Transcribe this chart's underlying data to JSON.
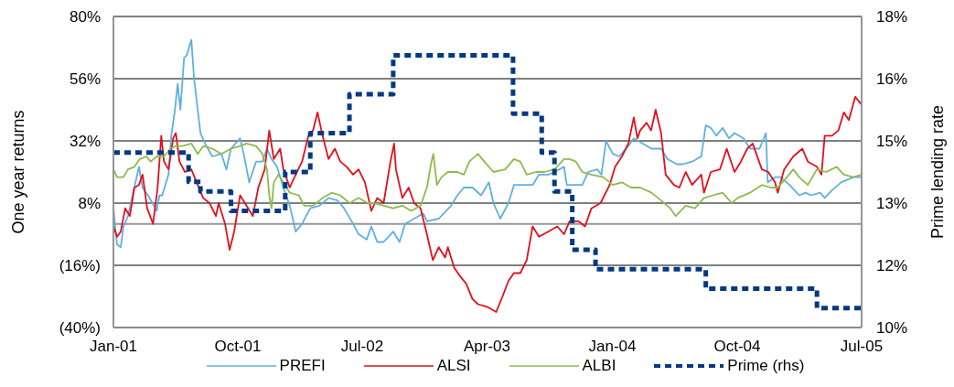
{
  "chart_data": {
    "type": "line",
    "ylabel": "One year returns",
    "y2label": "Prime lending rate",
    "xlim": [
      "2001-01-01",
      "2005-07-01"
    ],
    "xticks": [
      {
        "value": "2001-01",
        "label": "Jan-01"
      },
      {
        "value": "2001-10",
        "label": "Oct-01"
      },
      {
        "value": "2002-07",
        "label": "Jul-02"
      },
      {
        "value": "2003-04",
        "label": "Apr-03"
      },
      {
        "value": "2004-01",
        "label": "Jan-04"
      },
      {
        "value": "2004-10",
        "label": "Oct-04"
      },
      {
        "value": "2005-07",
        "label": "Jul-05"
      }
    ],
    "ylim": [
      -40,
      80
    ],
    "yticks": [
      {
        "value": -40,
        "label": "(40%)"
      },
      {
        "value": -16,
        "label": "(16%)"
      },
      {
        "value": 8,
        "label": "8%"
      },
      {
        "value": 32,
        "label": "32%"
      },
      {
        "value": 56,
        "label": "56%"
      },
      {
        "value": 80,
        "label": "80%"
      }
    ],
    "y2lim": [
      10,
      18
    ],
    "y2ticks": [
      {
        "value": 10,
        "label": "10%"
      },
      {
        "value": 11.6,
        "label": "12%"
      },
      {
        "value": 13.2,
        "label": "13%"
      },
      {
        "value": 14.8,
        "label": "15%"
      },
      {
        "value": 16.4,
        "label": "16%"
      },
      {
        "value": 18,
        "label": "18%"
      }
    ],
    "grid": "y",
    "legend": "bottom",
    "marker": "none",
    "ref_lines": [
      {
        "axis": "y",
        "value": 0,
        "color": "#969696"
      }
    ],
    "series": [
      {
        "name": "PREFI",
        "type": "line",
        "color": "#5fb0e0",
        "x": [
          "2001-01-01",
          "2001-01-09",
          "2001-01-17",
          "2001-01-23",
          "2001-02-02",
          "2001-02-12",
          "2001-02-26",
          "2001-03-06",
          "2001-03-18",
          "2001-04-06",
          "2001-04-12",
          "2001-04-18",
          "2001-05-02",
          "2001-05-08",
          "2001-05-16",
          "2001-05-22",
          "2001-05-28",
          "2001-06-05",
          "2001-06-11",
          "2001-06-21",
          "2001-06-27",
          "2001-07-05",
          "2001-07-11",
          "2001-07-21",
          "2001-08-06",
          "2001-08-26",
          "2001-09-06",
          "2001-09-16",
          "2001-10-06",
          "2001-10-14",
          "2001-10-26",
          "2001-11-10",
          "2001-11-24",
          "2001-12-04",
          "2001-12-14",
          "2001-12-26",
          "2002-01-09",
          "2002-01-23",
          "2002-02-05",
          "2002-02-19",
          "2002-03-09",
          "2002-03-29",
          "2002-04-18",
          "2002-05-08",
          "2002-05-22",
          "2002-06-11",
          "2002-06-23",
          "2002-07-11",
          "2002-07-21",
          "2002-08-03",
          "2002-08-17",
          "2002-09-07",
          "2002-09-21",
          "2002-10-03",
          "2002-10-23",
          "2002-11-12",
          "2002-11-20",
          "2002-12-16",
          "2003-01-12",
          "2003-01-26",
          "2003-02-09",
          "2003-02-28",
          "2003-03-19",
          "2003-04-05",
          "2003-04-15",
          "2003-04-30",
          "2003-05-18",
          "2003-05-30",
          "2003-06-20",
          "2003-07-10",
          "2003-07-24",
          "2003-08-13",
          "2003-08-27",
          "2003-09-17",
          "2003-09-23",
          "2003-10-13",
          "2003-10-27",
          "2003-11-09",
          "2003-11-29",
          "2003-12-08",
          "2003-12-18",
          "2004-01-02",
          "2004-01-16",
          "2004-02-05",
          "2004-02-17",
          "2004-03-07",
          "2004-03-27",
          "2004-04-17",
          "2004-05-01",
          "2004-05-21",
          "2004-06-04",
          "2004-06-24",
          "2004-07-14",
          "2004-07-24",
          "2004-08-04",
          "2004-08-16",
          "2004-08-30",
          "2004-09-13",
          "2004-09-25",
          "2004-10-15",
          "2004-10-29",
          "2004-11-19",
          "2004-12-03",
          "2004-12-07",
          "2004-12-23",
          "2005-01-04",
          "2005-01-24",
          "2005-02-14",
          "2005-02-28",
          "2005-03-12",
          "2005-04-01",
          "2005-04-11",
          "2005-04-27",
          "2005-05-17",
          "2005-06-13",
          "2005-07-01"
        ],
        "values": [
          6,
          -8,
          -9,
          -1,
          3,
          11,
          22,
          14,
          11,
          5,
          11,
          11,
          19,
          34,
          44,
          54,
          44,
          64,
          65,
          71,
          56,
          44,
          35,
          31,
          26,
          27,
          21,
          29,
          33,
          27,
          16,
          24,
          24,
          29,
          25,
          22,
          14,
          7,
          -3,
          0,
          6,
          7,
          10,
          9,
          6,
          0,
          -4,
          -6,
          -1,
          -7,
          -7,
          -3,
          -7,
          0,
          2,
          4,
          1,
          2,
          7,
          11,
          14,
          14,
          11,
          16,
          8,
          2,
          8,
          15,
          15,
          15,
          19,
          19,
          20,
          22,
          15,
          15,
          15,
          20,
          21,
          19,
          32,
          27,
          26,
          30,
          33,
          31,
          29,
          29,
          25,
          23,
          23,
          24,
          26,
          38,
          37,
          34,
          37,
          33,
          35,
          33,
          29,
          29,
          35,
          16,
          18,
          18,
          15,
          11,
          12,
          11,
          12,
          10,
          13,
          16,
          18,
          18
        ]
      },
      {
        "name": "ALSI",
        "type": "line",
        "color": "#e2101c",
        "x": [
          "2001-01-01",
          "2001-01-09",
          "2001-01-17",
          "2001-01-27",
          "2001-02-06",
          "2001-02-16",
          "2001-02-26",
          "2001-03-06",
          "2001-03-16",
          "2001-03-29",
          "2001-04-08",
          "2001-04-16",
          "2001-04-22",
          "2001-05-02",
          "2001-05-12",
          "2001-05-18",
          "2001-05-26",
          "2001-06-07",
          "2001-06-21",
          "2001-07-05",
          "2001-07-17",
          "2001-07-31",
          "2001-08-14",
          "2001-08-20",
          "2001-09-03",
          "2001-09-13",
          "2001-09-23",
          "2001-10-06",
          "2001-10-20",
          "2001-11-03",
          "2001-11-15",
          "2001-11-29",
          "2001-12-09",
          "2001-12-19",
          "2002-01-02",
          "2002-01-09",
          "2002-01-23",
          "2002-02-05",
          "2002-02-19",
          "2002-03-05",
          "2002-03-15",
          "2002-03-25",
          "2002-04-05",
          "2002-04-18",
          "2002-05-02",
          "2002-05-14",
          "2002-05-28",
          "2002-06-11",
          "2002-06-23",
          "2002-07-07",
          "2002-07-21",
          "2002-08-03",
          "2002-08-17",
          "2002-09-01",
          "2002-09-09",
          "2002-09-13",
          "2002-09-27",
          "2002-10-11",
          "2002-10-23",
          "2002-11-06",
          "2002-11-20",
          "2002-12-03",
          "2002-12-16",
          "2002-12-30",
          "2003-01-05",
          "2003-01-19",
          "2003-01-31",
          "2003-02-14",
          "2003-02-28",
          "2003-03-12",
          "2003-04-01",
          "2003-04-21",
          "2003-05-05",
          "2003-05-18",
          "2003-05-30",
          "2003-06-13",
          "2003-06-27",
          "2003-07-10",
          "2003-07-24",
          "2003-08-13",
          "2003-09-02",
          "2003-09-17",
          "2003-09-29",
          "2003-10-19",
          "2003-11-02",
          "2003-11-16",
          "2003-12-06",
          "2003-12-26",
          "2004-01-07",
          "2004-01-22",
          "2004-02-05",
          "2004-02-17",
          "2004-02-25",
          "2004-03-02",
          "2004-03-16",
          "2004-03-26",
          "2004-04-05",
          "2004-04-17",
          "2004-04-27",
          "2004-05-15",
          "2004-05-27",
          "2004-06-10",
          "2004-06-24",
          "2004-07-14",
          "2004-07-20",
          "2004-08-04",
          "2004-08-24",
          "2004-09-08",
          "2004-09-25",
          "2004-10-09",
          "2004-10-23",
          "2004-11-04",
          "2004-11-24",
          "2004-12-08",
          "2004-12-23",
          "2004-12-29",
          "2005-01-12",
          "2005-02-01",
          "2005-02-21",
          "2005-03-05",
          "2005-03-25",
          "2005-04-04",
          "2005-04-11",
          "2005-04-27",
          "2005-05-11",
          "2005-05-23",
          "2005-06-03",
          "2005-06-17",
          "2005-07-01"
        ],
        "values": [
          -1,
          -5,
          -3,
          6,
          3,
          14,
          15,
          19,
          6,
          0,
          14,
          34,
          24,
          21,
          33,
          35,
          24,
          20,
          21,
          15,
          10,
          8,
          3,
          8,
          0,
          -10,
          -3,
          11,
          7,
          3,
          14,
          21,
          36,
          25,
          29,
          21,
          14,
          19,
          24,
          34,
          36,
          43,
          34,
          25,
          29,
          24,
          22,
          19,
          21,
          16,
          5,
          10,
          8,
          24,
          31,
          21,
          10,
          14,
          8,
          6,
          -4,
          -14,
          -9,
          -13,
          -9,
          -17,
          -20,
          -23,
          -29,
          -31,
          -32,
          -34,
          -28,
          -22,
          -19,
          -19,
          -14,
          -1,
          -5,
          -3,
          -1,
          -4,
          1,
          1,
          -1,
          6,
          8,
          15,
          22,
          26,
          31,
          41,
          33,
          36,
          39,
          36,
          44,
          35,
          19,
          15,
          14,
          20,
          15,
          19,
          12,
          20,
          21,
          29,
          20,
          24,
          29,
          31,
          21,
          20,
          16,
          12,
          21,
          26,
          29,
          24,
          22,
          19,
          34,
          34,
          36,
          43,
          40,
          49,
          46
        ]
      },
      {
        "name": "ALBI",
        "type": "line",
        "color": "#8dbb4c",
        "x": [
          "2001-01-01",
          "2001-01-09",
          "2001-01-23",
          "2001-02-02",
          "2001-02-16",
          "2001-02-28",
          "2001-03-14",
          "2001-03-24",
          "2001-04-06",
          "2001-04-22",
          "2001-05-06",
          "2001-05-18",
          "2001-06-01",
          "2001-06-21",
          "2001-07-05",
          "2001-07-17",
          "2001-08-06",
          "2001-08-26",
          "2001-09-16",
          "2001-10-06",
          "2001-10-20",
          "2001-11-10",
          "2001-11-24",
          "2001-12-04",
          "2001-12-09",
          "2001-12-14",
          "2001-12-19",
          "2001-12-29",
          "2002-01-09",
          "2002-01-23",
          "2002-02-12",
          "2002-02-24",
          "2002-03-15",
          "2002-04-05",
          "2002-04-25",
          "2002-05-14",
          "2002-06-03",
          "2002-06-23",
          "2002-07-13",
          "2002-07-27",
          "2002-08-17",
          "2002-09-07",
          "2002-09-27",
          "2002-10-17",
          "2002-11-06",
          "2002-11-20",
          "2002-11-30",
          "2002-12-04",
          "2002-12-12",
          "2002-12-22",
          "2003-01-05",
          "2003-01-26",
          "2003-02-09",
          "2003-02-21",
          "2003-03-12",
          "2003-03-26",
          "2003-04-15",
          "2003-05-11",
          "2003-05-30",
          "2003-06-13",
          "2003-06-27",
          "2003-07-17",
          "2003-08-05",
          "2003-08-27",
          "2003-09-17",
          "2003-09-29",
          "2003-10-13",
          "2003-10-27",
          "2003-11-16",
          "2003-12-12",
          "2004-01-02",
          "2004-01-22",
          "2004-02-11",
          "2004-03-02",
          "2004-03-27",
          "2004-04-17",
          "2004-05-07",
          "2004-05-19",
          "2004-06-10",
          "2004-06-30",
          "2004-07-20",
          "2004-08-09",
          "2004-08-30",
          "2004-09-19",
          "2004-10-02",
          "2004-10-29",
          "2004-11-24",
          "2004-12-14",
          "2004-12-29",
          "2005-01-18",
          "2005-02-01",
          "2005-02-14",
          "2005-03-05",
          "2005-03-25",
          "2005-04-14",
          "2005-05-07",
          "2005-05-23",
          "2005-06-13",
          "2005-07-01"
        ],
        "values": [
          21,
          18,
          18,
          21,
          22,
          25,
          26,
          24,
          26,
          26,
          29,
          30,
          30,
          31,
          27,
          30,
          29,
          27,
          29,
          30,
          31,
          30,
          27,
          21,
          11,
          6,
          16,
          19,
          16,
          12,
          11,
          7,
          7,
          10,
          12,
          11,
          8,
          10,
          8,
          8,
          7,
          6,
          7,
          5,
          7,
          14,
          24,
          27,
          15,
          18,
          20,
          20,
          19,
          24,
          27,
          24,
          20,
          21,
          25,
          24,
          19,
          20,
          20,
          21,
          25,
          25,
          24,
          20,
          19,
          18,
          15,
          16,
          14,
          14,
          12,
          9,
          6,
          3,
          7,
          6,
          10,
          11,
          12,
          8,
          10,
          12,
          15,
          14,
          14,
          18,
          21,
          18,
          15,
          21,
          20,
          22,
          19,
          18,
          19
        ]
      },
      {
        "name": "Prime (rhs)",
        "type": "step",
        "axis": "y2",
        "line_style": "dashed",
        "color": "#003a80",
        "x": [
          "2001-01-01",
          "2001-06-15",
          "2001-07-11",
          "2001-09-16",
          "2002-01-13",
          "2002-03-09",
          "2002-06-03",
          "2002-09-07",
          "2003-05-28",
          "2003-07-30",
          "2003-08-27",
          "2003-10-05",
          "2003-11-25",
          "2004-07-24",
          "2005-03-25",
          "2005-07-01"
        ],
        "values": [
          14.5,
          13.75,
          13.5,
          13.0,
          14.0,
          15.0,
          16.0,
          17.0,
          15.5,
          14.5,
          13.5,
          12.0,
          11.5,
          11.0,
          10.5,
          10.5
        ]
      }
    ]
  }
}
